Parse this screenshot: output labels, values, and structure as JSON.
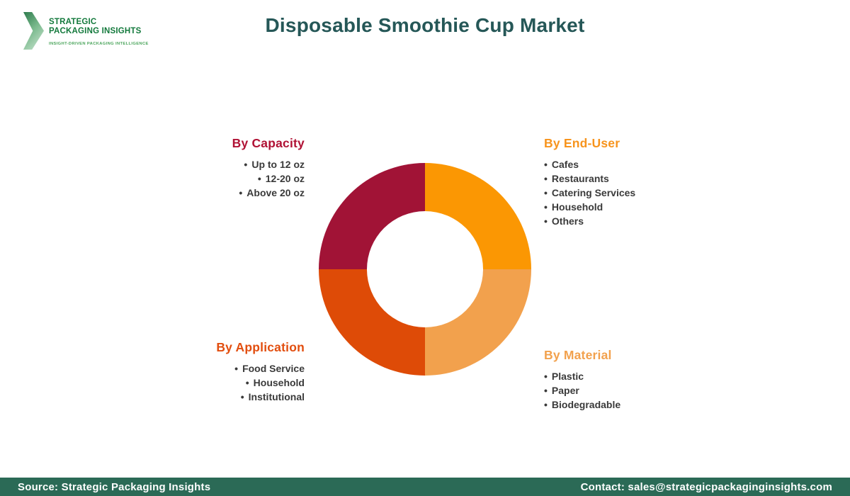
{
  "logo": {
    "line1": "STRATEGIC",
    "line2": "PACKAGING INSIGHTS",
    "tagline": "INSIGHT-DRIVEN PACKAGING INTELLIGENCE",
    "brand_green": "#13793C"
  },
  "header": {
    "title": "Disposable Smoothie Cup Market",
    "title_color": "#255757"
  },
  "chart_data": {
    "type": "pie",
    "title": "Disposable Smoothie Cup Market segmentation donut",
    "inner_radius_ratio": 0.55,
    "start_angle_deg": 0,
    "segments": [
      {
        "label": "By End-User",
        "value": 25,
        "color": "#FB9703",
        "position": "top-right"
      },
      {
        "label": "By Material",
        "value": 25,
        "color": "#F2A14D",
        "position": "bottom-right"
      },
      {
        "label": "By Application",
        "value": 25,
        "color": "#DE4B07",
        "position": "bottom-left"
      },
      {
        "label": "By Capacity",
        "value": 25,
        "color": "#A11336",
        "position": "top-left"
      }
    ]
  },
  "sections": {
    "capacity": {
      "heading": "By Capacity",
      "color": "#B01235",
      "items": [
        "Up to 12 oz",
        "12-20 oz",
        "Above 20 oz"
      ]
    },
    "end_user": {
      "heading": "By End-User",
      "color": "#F7941D",
      "items": [
        "Cafes",
        "Restaurants",
        "Catering Services",
        "Household",
        "Others"
      ]
    },
    "application": {
      "heading": "By Application",
      "color": "#E24E0F",
      "items": [
        "Food Service",
        "Household",
        "Institutional"
      ]
    },
    "material": {
      "heading": "By Material",
      "color": "#F2A14D",
      "items": [
        "Plastic",
        "Paper",
        "Biodegradable"
      ]
    }
  },
  "footer": {
    "source": "Source: Strategic Packaging Insights",
    "contact": "Contact: sales@strategicpackaginginsights.com",
    "background": "#2B6A56"
  }
}
